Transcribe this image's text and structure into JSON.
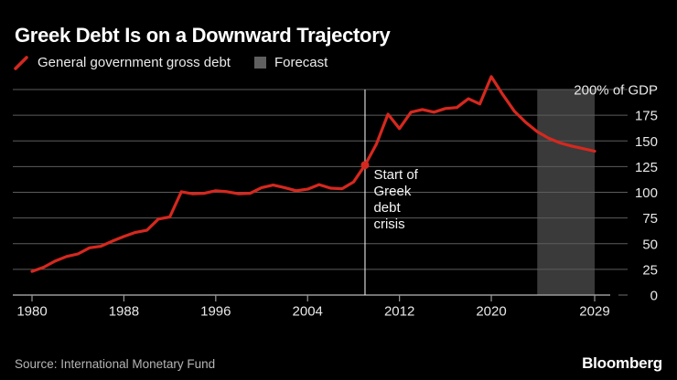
{
  "header": {
    "title": "Greek Debt Is on a Downward Trajectory"
  },
  "legend": {
    "series_label": "General government gross debt",
    "forecast_label": "Forecast"
  },
  "colors": {
    "background": "#000000",
    "line_red": "#d5281f",
    "forecast_band": "#3a3a3a",
    "forecast_swatch": "#606060",
    "gridline": "#5c5c5c",
    "axis_line": "#999999",
    "tick_label": "#e8e8e8",
    "annotation_text": "#f5f5f5",
    "crisis_line": "#ffffff"
  },
  "chart_data": {
    "type": "line",
    "title": "Greek Debt Is on a Downward Trajectory",
    "xlabel": "",
    "ylabel": "% of GDP",
    "unit_label": "200% of GDP",
    "xlim": [
      1978.3,
      2030.2
    ],
    "ylim": [
      0,
      200
    ],
    "grid": "horizontal",
    "legend_position": "top-left",
    "x_ticks": [
      1980,
      1988,
      1996,
      2004,
      2012,
      2020,
      2029
    ],
    "y_ticks": [
      {
        "value": 200,
        "label": "200% of GDP"
      },
      {
        "value": 175,
        "label": "175"
      },
      {
        "value": 150,
        "label": "150"
      },
      {
        "value": 125,
        "label": "125"
      },
      {
        "value": 100,
        "label": "100"
      },
      {
        "value": 75,
        "label": "75"
      },
      {
        "value": 50,
        "label": "50"
      },
      {
        "value": 25,
        "label": "25"
      },
      {
        "value": 0,
        "label": "0"
      }
    ],
    "series": [
      {
        "name": "General government gross debt",
        "x_start": 1980,
        "values": [
          23,
          27,
          33,
          37.5,
          40,
          46,
          47.5,
          52.5,
          57,
          61,
          63,
          74,
          76,
          100.5,
          98.5,
          99,
          101.5,
          100.5,
          98.5,
          99,
          104.5,
          107,
          104.5,
          101.5,
          103,
          107.5,
          104,
          103.5,
          110,
          126.5,
          147,
          176,
          162,
          178,
          180.5,
          178,
          181.5,
          182.5,
          191,
          186,
          212.5,
          195,
          179,
          168,
          159,
          152.5,
          148,
          145,
          142.5,
          140
        ]
      }
    ],
    "forecast_band": {
      "from": 2024,
      "to": 2029,
      "label": "Forecast"
    },
    "annotation": {
      "year": 2009,
      "marker_value": 126.5,
      "lines": [
        "Start of",
        "Greek",
        "debt",
        "crisis"
      ]
    }
  },
  "footer": {
    "source": "Source: International Monetary Fund",
    "brand": "Bloomberg"
  }
}
